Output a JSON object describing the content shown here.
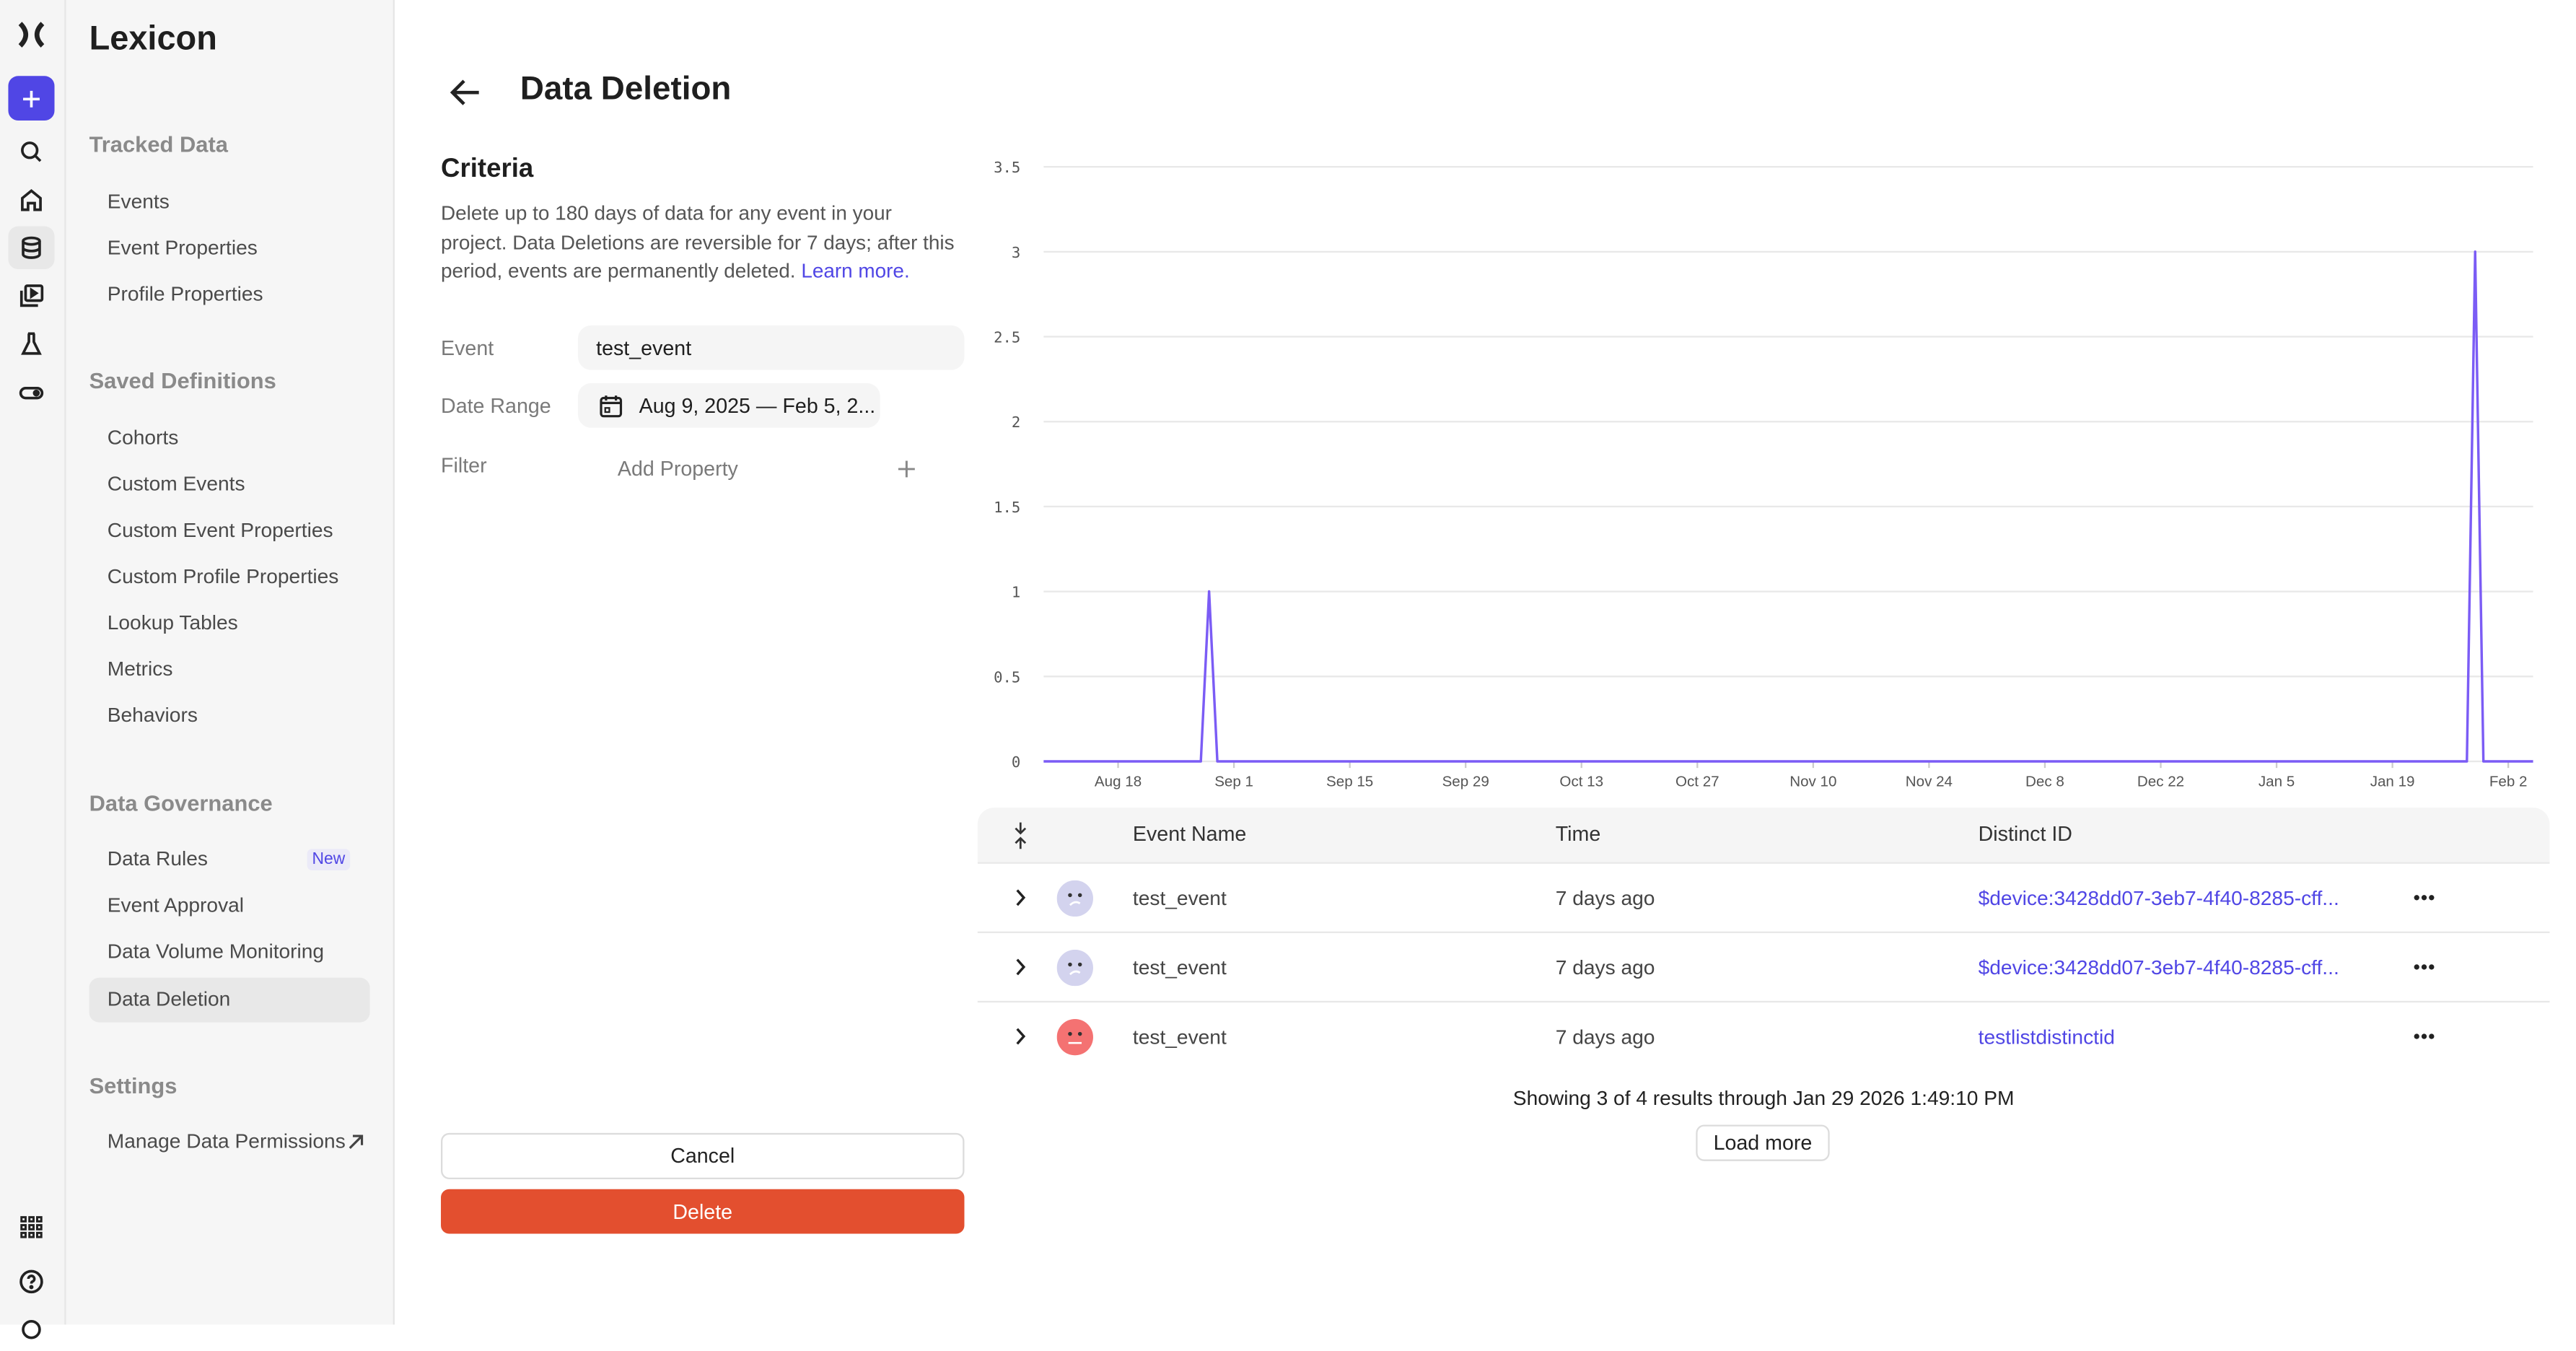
{
  "sidebar": {
    "title": "Lexicon",
    "sections": [
      {
        "label": "Tracked Data",
        "items": [
          {
            "label": "Events"
          },
          {
            "label": "Event Properties"
          },
          {
            "label": "Profile Properties"
          }
        ]
      },
      {
        "label": "Saved Definitions",
        "items": [
          {
            "label": "Cohorts"
          },
          {
            "label": "Custom Events"
          },
          {
            "label": "Custom Event Properties"
          },
          {
            "label": "Custom Profile Properties"
          },
          {
            "label": "Lookup Tables"
          },
          {
            "label": "Metrics"
          },
          {
            "label": "Behaviors"
          }
        ]
      },
      {
        "label": "Data Governance",
        "items": [
          {
            "label": "Data Rules",
            "badge": "New"
          },
          {
            "label": "Event Approval"
          },
          {
            "label": "Data Volume Monitoring"
          },
          {
            "label": "Data Deletion",
            "selected": true
          }
        ]
      },
      {
        "label": "Settings",
        "items": [
          {
            "label": "Manage Data Permissions",
            "icon": "external-link-icon"
          }
        ]
      }
    ]
  },
  "rail": {
    "icons": [
      "logo-icon",
      "plus-icon",
      "search-icon",
      "home-icon",
      "database-icon",
      "replay-icon",
      "experiment-flask-icon",
      "toggle-icon",
      "apps-grid-icon",
      "help-icon",
      "settings-gear-icon"
    ],
    "accent": "#5046e5"
  },
  "header": {
    "title": "Data Deletion"
  },
  "criteria": {
    "title": "Criteria",
    "description": "Delete up to 180 days of data for any event in your project. Data Deletions are reversible for 7 days; after this period, events are permanently deleted.",
    "learn_more": "Learn more.",
    "event_label": "Event",
    "event_value": "test_event",
    "date_label": "Date Range",
    "date_value": "Aug 9, 2025 — Feb 5, 2...",
    "filter_label": "Filter",
    "filter_placeholder": "Add Property",
    "cancel": "Cancel",
    "delete": "Delete",
    "delete_color": "#e34f2f"
  },
  "chart_data": {
    "type": "line",
    "color": "#7b5cf5",
    "grid": true,
    "ylim": [
      0,
      3.5
    ],
    "y_ticks": [
      "0",
      "0.5",
      "1",
      "1.5",
      "2",
      "2.5",
      "3",
      "3.5"
    ],
    "x_range": [
      "2025-08-09",
      "2026-02-05"
    ],
    "x_ticks": [
      {
        "date": "2025-08-18",
        "label": "Aug 18"
      },
      {
        "date": "2025-09-01",
        "label": "Sep 1"
      },
      {
        "date": "2025-09-15",
        "label": "Sep 15"
      },
      {
        "date": "2025-09-29",
        "label": "Sep 29"
      },
      {
        "date": "2025-10-13",
        "label": "Oct 13"
      },
      {
        "date": "2025-10-27",
        "label": "Oct 27"
      },
      {
        "date": "2025-11-10",
        "label": "Nov 10"
      },
      {
        "date": "2025-11-24",
        "label": "Nov 24"
      },
      {
        "date": "2025-12-08",
        "label": "Dec 8"
      },
      {
        "date": "2025-12-22",
        "label": "Dec 22"
      },
      {
        "date": "2026-01-05",
        "label": "Jan 5"
      },
      {
        "date": "2026-01-19",
        "label": "Jan 19"
      },
      {
        "date": "2026-02-02",
        "label": "Feb 2"
      }
    ],
    "series": [
      {
        "points": [
          {
            "x": "2025-08-09",
            "y": 0
          },
          {
            "x": "2025-08-28",
            "y": 0
          },
          {
            "x": "2025-08-29",
            "y": 1
          },
          {
            "x": "2025-08-30",
            "y": 0
          },
          {
            "x": "2026-01-28",
            "y": 0
          },
          {
            "x": "2026-01-29",
            "y": 3
          },
          {
            "x": "2026-01-30",
            "y": 0
          },
          {
            "x": "2026-02-05",
            "y": 0
          }
        ]
      }
    ]
  },
  "table": {
    "headers": {
      "event": "Event Name",
      "time": "Time",
      "distinct": "Distinct ID"
    },
    "rows": [
      {
        "event": "test_event",
        "time": "7 days ago",
        "distinct": "$device:3428dd07-3eb7-4f40-8285-cff...",
        "avatar_color": "#d3d3ee"
      },
      {
        "event": "test_event",
        "time": "7 days ago",
        "distinct": "$device:3428dd07-3eb7-4f40-8285-cff...",
        "avatar_color": "#d3d3ee"
      },
      {
        "event": "test_event",
        "time": "7 days ago",
        "distinct": "testlistdistinctid",
        "avatar_color": "#f47272"
      }
    ],
    "footer": "Showing 3 of 4 results through Jan 29 2026 1:49:10 PM",
    "load_more": "Load more"
  }
}
